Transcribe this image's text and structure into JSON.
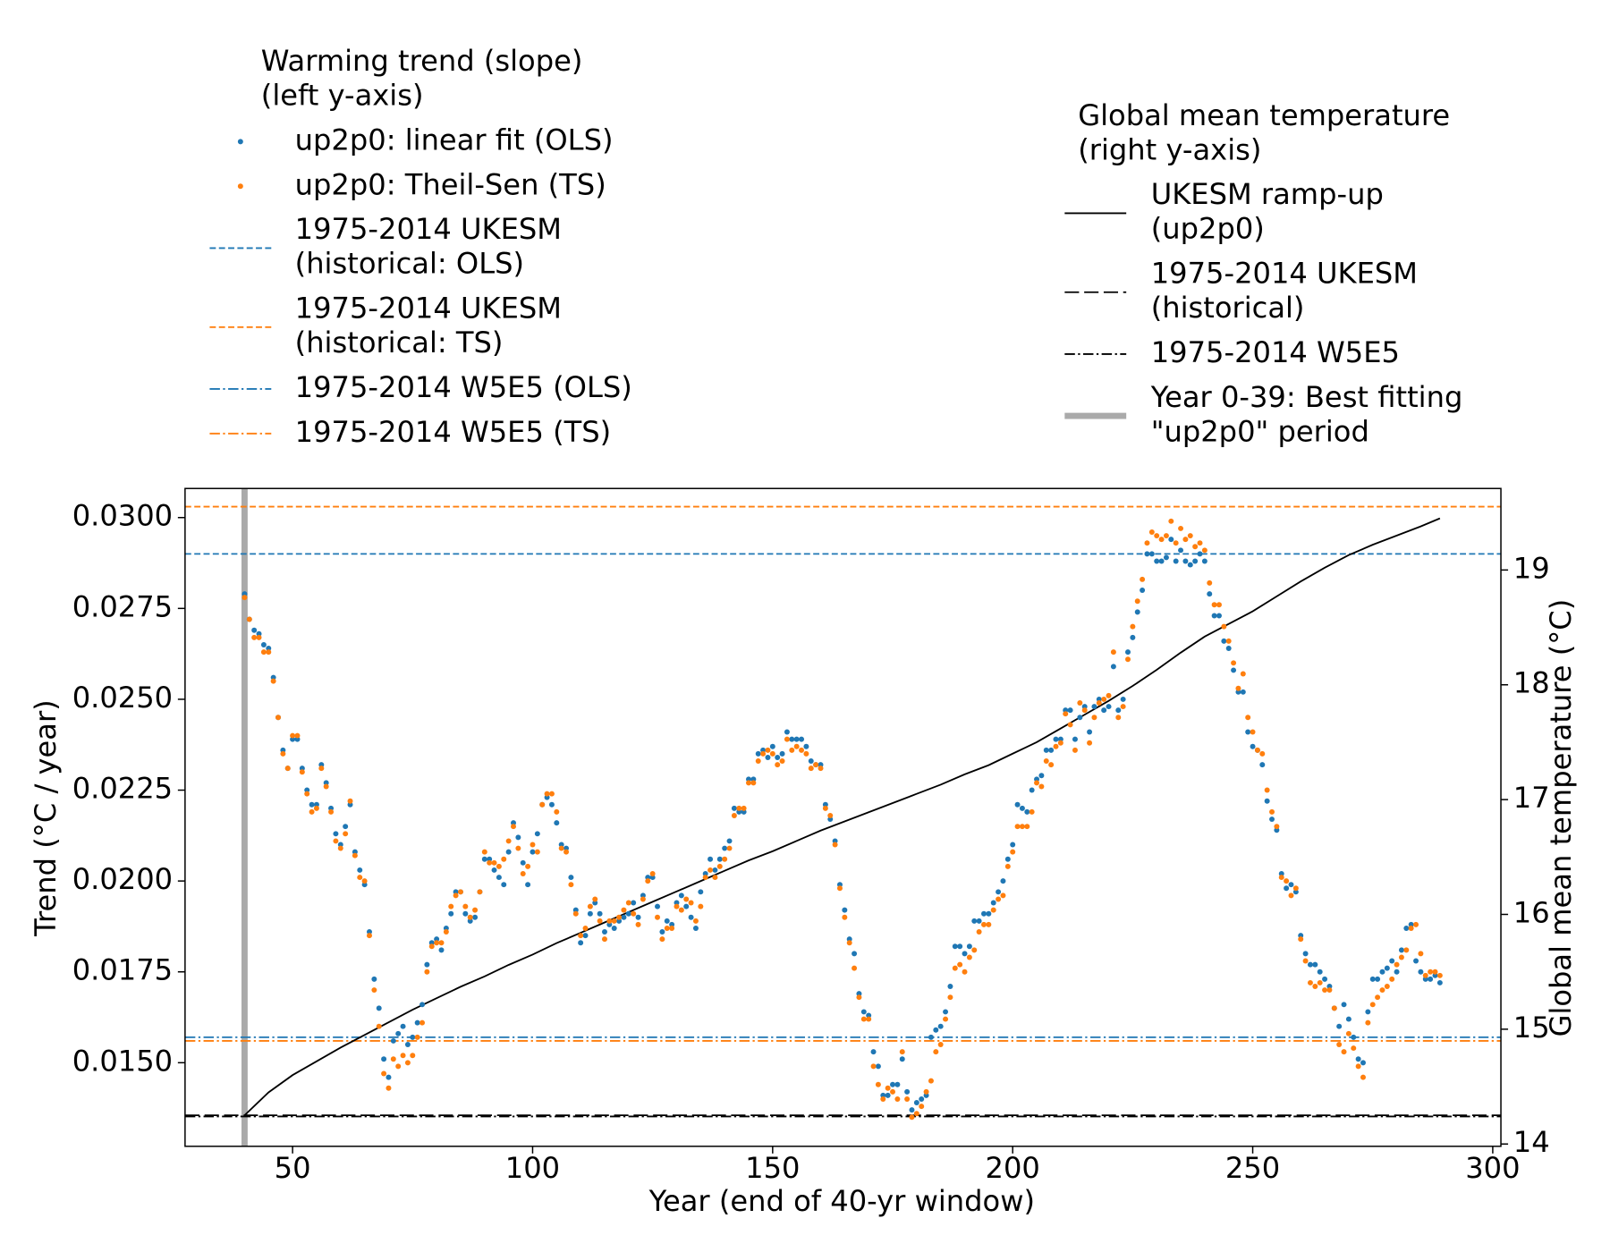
{
  "chart_data": {
    "type": "scatter",
    "xlabel": "Year (end of 40-yr window)",
    "ylabel": "Trend (°C / year)",
    "y2label": "Global mean temperature (°C)",
    "xlim": [
      27.6,
      301.7
    ],
    "ylim": [
      0.0127,
      0.0308
    ],
    "y2lim": [
      13.98,
      19.71
    ],
    "xticks": [
      50,
      100,
      150,
      200,
      250,
      300
    ],
    "yticks": [
      {
        "value": 0.015,
        "label": "0.0150"
      },
      {
        "value": 0.0175,
        "label": "0.0175"
      },
      {
        "value": 0.02,
        "label": "0.0200"
      },
      {
        "value": 0.0225,
        "label": "0.0225"
      },
      {
        "value": 0.025,
        "label": "0.0250"
      },
      {
        "value": 0.0275,
        "label": "0.0275"
      },
      {
        "value": 0.03,
        "label": "0.0300"
      }
    ],
    "y2ticks": [
      14,
      15,
      16,
      17,
      18,
      19
    ],
    "legends": [
      {
        "corner": "upper left",
        "title": [
          "Warming trend (slope)",
          "(left y-axis)"
        ]
      },
      {
        "corner": "upper right",
        "title": [
          "Global mean temperature",
          "(right y-axis)"
        ]
      }
    ],
    "x": [
      40,
      41,
      42,
      43,
      44,
      45,
      46,
      47,
      48,
      49,
      50,
      51,
      52,
      53,
      54,
      55,
      56,
      57,
      58,
      59,
      60,
      61,
      62,
      63,
      64,
      65,
      66,
      67,
      68,
      69,
      70,
      71,
      72,
      73,
      74,
      75,
      76,
      77,
      78,
      79,
      80,
      81,
      82,
      83,
      84,
      85,
      86,
      87,
      88,
      89,
      90,
      91,
      92,
      93,
      94,
      95,
      96,
      97,
      98,
      99,
      100,
      101,
      102,
      103,
      104,
      105,
      106,
      107,
      108,
      109,
      110,
      111,
      112,
      113,
      114,
      115,
      116,
      117,
      118,
      119,
      120,
      121,
      122,
      123,
      124,
      125,
      126,
      127,
      128,
      129,
      130,
      131,
      132,
      133,
      134,
      135,
      136,
      137,
      138,
      139,
      140,
      141,
      142,
      143,
      144,
      145,
      146,
      147,
      148,
      149,
      150,
      151,
      152,
      153,
      154,
      155,
      156,
      157,
      158,
      159,
      160,
      161,
      162,
      163,
      164,
      165,
      166,
      167,
      168,
      169,
      170,
      171,
      172,
      173,
      174,
      175,
      176,
      177,
      178,
      179,
      180,
      181,
      182,
      183,
      184,
      185,
      186,
      187,
      188,
      189,
      190,
      191,
      192,
      193,
      194,
      195,
      196,
      197,
      198,
      199,
      200,
      201,
      202,
      203,
      204,
      205,
      206,
      207,
      208,
      209,
      210,
      211,
      212,
      213,
      214,
      215,
      216,
      217,
      218,
      219,
      220,
      221,
      222,
      223,
      224,
      225,
      226,
      227,
      228,
      229,
      230,
      231,
      232,
      233,
      234,
      235,
      236,
      237,
      238,
      239,
      240,
      241,
      242,
      243,
      244,
      245,
      246,
      247,
      248,
      249,
      250,
      251,
      252,
      253,
      254,
      255,
      256,
      257,
      258,
      259,
      260,
      261,
      262,
      263,
      264,
      265,
      266,
      267,
      268,
      269,
      270,
      271,
      272,
      273,
      274,
      275,
      276,
      277,
      278,
      279,
      280,
      281,
      282,
      283,
      284,
      285,
      286,
      287,
      288,
      289
    ],
    "series": [
      {
        "name": [
          "up2p0: linear fit (OLS)"
        ],
        "type": "dots",
        "color": "#1f77b4",
        "legend": "upper left",
        "values": [
          0.0279,
          0.0272,
          0.0269,
          0.0268,
          0.0265,
          0.0264,
          0.0256,
          0.0245,
          0.0236,
          0.0231,
          0.0239,
          0.0239,
          0.0231,
          0.0225,
          0.0221,
          0.0221,
          0.0232,
          0.0227,
          0.022,
          0.0213,
          0.021,
          0.0215,
          0.0221,
          0.0208,
          0.0203,
          0.0199,
          0.0186,
          0.0173,
          0.0165,
          0.0151,
          0.0146,
          0.0156,
          0.0158,
          0.016,
          0.0155,
          0.0157,
          0.0161,
          0.0166,
          0.0177,
          0.0183,
          0.0184,
          0.0181,
          0.0187,
          0.0191,
          0.0197,
          0.0197,
          0.0191,
          0.0189,
          0.019,
          0.0197,
          0.0206,
          0.0206,
          0.0203,
          0.0201,
          0.0199,
          0.0208,
          0.0216,
          0.0212,
          0.0205,
          0.0199,
          0.0208,
          0.0213,
          0.0221,
          0.0223,
          0.0221,
          0.0216,
          0.021,
          0.0209,
          0.0201,
          0.0192,
          0.0183,
          0.0185,
          0.0191,
          0.0194,
          0.0191,
          0.0186,
          0.0188,
          0.0187,
          0.0189,
          0.019,
          0.0191,
          0.0194,
          0.019,
          0.0196,
          0.0201,
          0.0201,
          0.0193,
          0.0186,
          0.0189,
          0.0188,
          0.0194,
          0.0196,
          0.0193,
          0.019,
          0.0187,
          0.0197,
          0.0202,
          0.0206,
          0.0203,
          0.0206,
          0.0209,
          0.0211,
          0.022,
          0.0219,
          0.0219,
          0.0228,
          0.0228,
          0.0235,
          0.0236,
          0.0234,
          0.0237,
          0.0234,
          0.0235,
          0.0241,
          0.0239,
          0.0239,
          0.0239,
          0.0237,
          0.0233,
          0.0232,
          0.0232,
          0.0221,
          0.0217,
          0.0211,
          0.0199,
          0.0192,
          0.0184,
          0.018,
          0.0169,
          0.0164,
          0.0163,
          0.0153,
          0.0149,
          0.0141,
          0.0141,
          0.0144,
          0.0144,
          0.0151,
          0.0142,
          0.0137,
          0.0139,
          0.014,
          0.0141,
          0.0157,
          0.0159,
          0.016,
          0.0164,
          0.0171,
          0.0182,
          0.0182,
          0.018,
          0.0182,
          0.0189,
          0.0189,
          0.0191,
          0.0191,
          0.0194,
          0.0197,
          0.02,
          0.0206,
          0.021,
          0.0221,
          0.022,
          0.0219,
          0.0225,
          0.0228,
          0.0229,
          0.0236,
          0.0236,
          0.0239,
          0.0239,
          0.0247,
          0.0247,
          0.0239,
          0.0245,
          0.0248,
          0.0241,
          0.0248,
          0.025,
          0.0247,
          0.0248,
          0.0259,
          0.0247,
          0.025,
          0.0263,
          0.0267,
          0.0274,
          0.028,
          0.029,
          0.029,
          0.0288,
          0.0288,
          0.0289,
          0.0294,
          0.0288,
          0.0291,
          0.0288,
          0.0287,
          0.0288,
          0.029,
          0.0288,
          0.0279,
          0.0273,
          0.0273,
          0.0266,
          0.0264,
          0.0258,
          0.0252,
          0.0252,
          0.0241,
          0.0237,
          0.0236,
          0.0232,
          0.0222,
          0.0217,
          0.0214,
          0.0202,
          0.0198,
          0.0199,
          0.0197,
          0.0185,
          0.018,
          0.0177,
          0.0177,
          0.0175,
          0.0173,
          0.0171,
          0.0165,
          0.016,
          0.0166,
          0.0162,
          0.0157,
          0.0151,
          0.015,
          0.0164,
          0.0173,
          0.0173,
          0.0175,
          0.0176,
          0.0178,
          0.0175,
          0.0181,
          0.0187,
          0.0188,
          0.0178,
          0.0175,
          0.0173,
          0.0173,
          0.0174,
          0.0172
        ]
      },
      {
        "name": [
          "up2p0: Theil-Sen (TS)"
        ],
        "type": "dots",
        "color": "#ff7f0e",
        "legend": "upper left",
        "values": [
          0.0278,
          0.0272,
          0.0267,
          0.0267,
          0.0263,
          0.0263,
          0.0255,
          0.0245,
          0.0235,
          0.0231,
          0.024,
          0.024,
          0.023,
          0.0224,
          0.0219,
          0.022,
          0.0231,
          0.0226,
          0.0219,
          0.0211,
          0.0209,
          0.0213,
          0.0222,
          0.0207,
          0.0201,
          0.02,
          0.0185,
          0.017,
          0.016,
          0.0147,
          0.0143,
          0.0151,
          0.0149,
          0.0152,
          0.015,
          0.0152,
          0.0157,
          0.0161,
          0.0175,
          0.0182,
          0.0183,
          0.0183,
          0.0186,
          0.0193,
          0.0196,
          0.0197,
          0.0193,
          0.019,
          0.0192,
          0.0197,
          0.0208,
          0.0205,
          0.0205,
          0.0204,
          0.0206,
          0.0211,
          0.0215,
          0.0209,
          0.0202,
          0.0204,
          0.021,
          0.0208,
          0.0221,
          0.0224,
          0.0224,
          0.0219,
          0.0209,
          0.0208,
          0.0199,
          0.0191,
          0.0185,
          0.0187,
          0.0193,
          0.0195,
          0.0189,
          0.0184,
          0.0189,
          0.0189,
          0.019,
          0.0192,
          0.0194,
          0.0191,
          0.0188,
          0.0195,
          0.02,
          0.0202,
          0.019,
          0.0184,
          0.0187,
          0.0187,
          0.0193,
          0.0192,
          0.0195,
          0.0194,
          0.0189,
          0.0193,
          0.0201,
          0.0203,
          0.0201,
          0.0204,
          0.0206,
          0.0209,
          0.0218,
          0.022,
          0.022,
          0.0227,
          0.0227,
          0.0233,
          0.0235,
          0.0236,
          0.0235,
          0.0232,
          0.0233,
          0.0239,
          0.0236,
          0.0237,
          0.0236,
          0.0235,
          0.0231,
          0.0232,
          0.0231,
          0.022,
          0.0218,
          0.021,
          0.0198,
          0.019,
          0.0183,
          0.0176,
          0.0168,
          0.0162,
          0.0162,
          0.0149,
          0.0144,
          0.014,
          0.0143,
          0.0142,
          0.014,
          0.0153,
          0.014,
          0.0135,
          0.0136,
          0.0138,
          0.0142,
          0.0145,
          0.0153,
          0.0155,
          0.0162,
          0.0168,
          0.0176,
          0.0177,
          0.0175,
          0.0179,
          0.0181,
          0.0186,
          0.0188,
          0.0188,
          0.0192,
          0.0195,
          0.0196,
          0.0204,
          0.0208,
          0.0215,
          0.0215,
          0.0215,
          0.0219,
          0.0227,
          0.0226,
          0.0233,
          0.0232,
          0.0237,
          0.0238,
          0.0246,
          0.0243,
          0.0236,
          0.0249,
          0.0247,
          0.0238,
          0.0245,
          0.0249,
          0.025,
          0.0251,
          0.0263,
          0.0245,
          0.0248,
          0.0261,
          0.027,
          0.0277,
          0.0283,
          0.0293,
          0.0296,
          0.0295,
          0.0294,
          0.0295,
          0.0299,
          0.0293,
          0.0297,
          0.0294,
          0.0295,
          0.0292,
          0.0293,
          0.0291,
          0.0282,
          0.0276,
          0.0276,
          0.027,
          0.0266,
          0.026,
          0.0253,
          0.0257,
          0.0245,
          0.0241,
          0.0236,
          0.0235,
          0.0225,
          0.0219,
          0.0215,
          0.0201,
          0.02,
          0.0196,
          0.0198,
          0.0184,
          0.0178,
          0.0172,
          0.0171,
          0.0172,
          0.017,
          0.017,
          0.0165,
          0.0155,
          0.0153,
          0.0158,
          0.0154,
          0.0149,
          0.0146,
          0.0161,
          0.0166,
          0.0168,
          0.017,
          0.0171,
          0.0173,
          0.0177,
          0.0179,
          0.0181,
          0.0187,
          0.0188,
          0.018,
          0.0174,
          0.0175,
          0.0175,
          0.0174
        ]
      },
      {
        "name": [
          "1975-2014 UKESM",
          "(historical: OLS)"
        ],
        "type": "hline",
        "style": "dashed",
        "color": "#1f77b4",
        "legend": "upper left",
        "value": 0.029
      },
      {
        "name": [
          "1975-2014 UKESM",
          "(historical: TS)"
        ],
        "type": "hline",
        "style": "dashed",
        "color": "#ff7f0e",
        "legend": "upper left",
        "value": 0.0303
      },
      {
        "name": [
          "1975-2014 W5E5 (OLS)"
        ],
        "type": "hline",
        "style": "dashdot",
        "color": "#1f77b4",
        "legend": "upper left",
        "value": 0.0157
      },
      {
        "name": [
          "1975-2014 W5E5 (TS)"
        ],
        "type": "hline",
        "style": "dashdot",
        "color": "#ff7f0e",
        "legend": "upper left",
        "value": 0.0156
      },
      {
        "name": [
          "UKESM ramp-up",
          "(up2p0)"
        ],
        "type": "line",
        "color": "#000000",
        "axis": "y2",
        "legend": "upper right",
        "x": [
          40,
          45,
          50,
          55,
          60,
          65,
          70,
          75,
          80,
          85,
          90,
          95,
          100,
          105,
          110,
          115,
          120,
          125,
          130,
          135,
          140,
          145,
          150,
          155,
          160,
          165,
          170,
          175,
          180,
          185,
          190,
          195,
          200,
          205,
          210,
          215,
          220,
          225,
          230,
          235,
          240,
          245,
          250,
          255,
          260,
          265,
          270,
          275,
          280,
          285,
          289
        ],
        "values": [
          14.25,
          14.45,
          14.6,
          14.72,
          14.84,
          14.95,
          15.06,
          15.17,
          15.27,
          15.37,
          15.46,
          15.56,
          15.65,
          15.75,
          15.84,
          15.93,
          16.02,
          16.11,
          16.2,
          16.29,
          16.38,
          16.47,
          16.55,
          16.64,
          16.73,
          16.81,
          16.89,
          16.97,
          17.05,
          17.13,
          17.22,
          17.3,
          17.4,
          17.5,
          17.62,
          17.74,
          17.86,
          17.99,
          18.13,
          18.28,
          18.42,
          18.53,
          18.64,
          18.77,
          18.9,
          19.02,
          19.13,
          19.22,
          19.3,
          19.38,
          19.45
        ]
      },
      {
        "name": [
          "1975-2014 UKESM",
          "(historical)"
        ],
        "type": "hline",
        "style": "longdash",
        "color": "#000000",
        "axis": "y2",
        "legend": "upper right",
        "value": 14.25
      },
      {
        "name": [
          "1975-2014 W5E5"
        ],
        "type": "hline",
        "style": "dashdot",
        "color": "#000000",
        "axis": "y2",
        "legend": "upper right",
        "value": 14.24
      },
      {
        "name": [
          "Year 0-39: Best fitting",
          "\"up2p0\" period"
        ],
        "type": "vline",
        "color": "#aaaaaa",
        "legend": "upper right",
        "x": 40
      }
    ]
  }
}
